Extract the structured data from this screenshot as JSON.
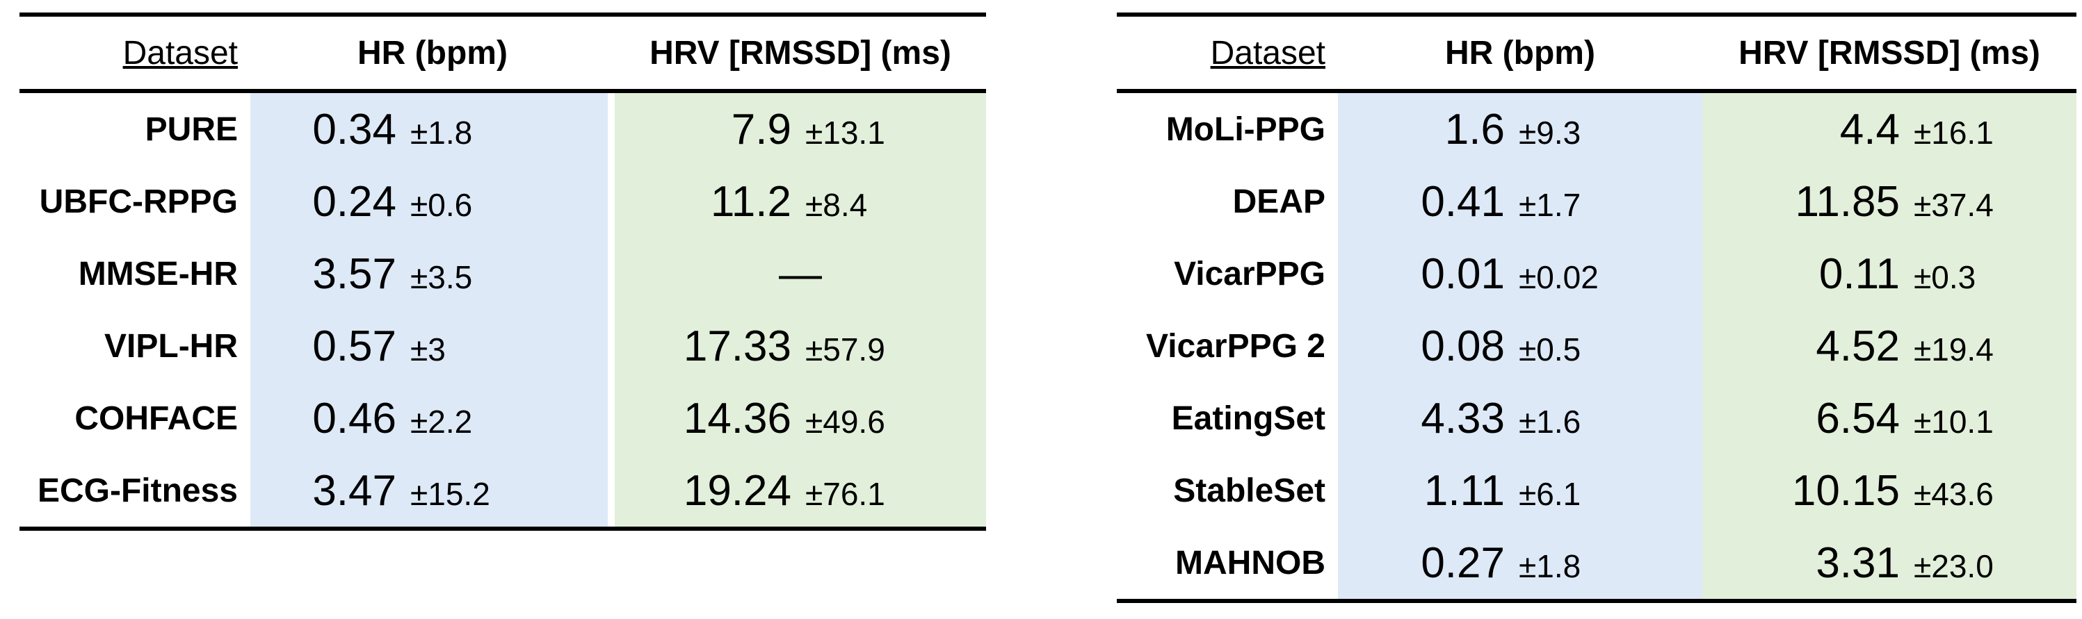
{
  "left_table": {
    "headers": {
      "dataset": "Dataset",
      "hr": "HR (bpm)",
      "hrv": "HRV [RMSSD] (ms)"
    },
    "rows": [
      {
        "dataset": "PURE",
        "hr": "0.34",
        "hr_sd": "±1.8",
        "hrv": "7.9",
        "hrv_sd": "±13.1"
      },
      {
        "dataset": "UBFC-RPPG",
        "hr": "0.24",
        "hr_sd": "±0.6",
        "hrv": "11.2",
        "hrv_sd": "±8.4"
      },
      {
        "dataset": "MMSE-HR",
        "hr": "3.57",
        "hr_sd": "±3.5",
        "hrv": "—",
        "hrv_sd": ""
      },
      {
        "dataset": "VIPL-HR",
        "hr": "0.57",
        "hr_sd": "±3",
        "hrv": "17.33",
        "hrv_sd": "±57.9"
      },
      {
        "dataset": "COHFACE",
        "hr": "0.46",
        "hr_sd": "±2.2",
        "hrv": "14.36",
        "hrv_sd": "±49.6"
      },
      {
        "dataset": "ECG-Fitness",
        "hr": "3.47",
        "hr_sd": "±15.2",
        "hrv": "19.24",
        "hrv_sd": "±76.1"
      }
    ]
  },
  "right_table": {
    "headers": {
      "dataset": "Dataset",
      "hr": "HR (bpm)",
      "hrv": "HRV [RMSSD] (ms)"
    },
    "rows": [
      {
        "dataset": "MoLi-PPG",
        "hr": "1.6",
        "hr_sd": "±9.3",
        "hrv": "4.4",
        "hrv_sd": "±16.1"
      },
      {
        "dataset": "DEAP",
        "hr": "0.41",
        "hr_sd": "±1.7",
        "hrv": "11.85",
        "hrv_sd": "±37.4"
      },
      {
        "dataset": "VicarPPG",
        "hr": "0.01",
        "hr_sd": "±0.02",
        "hrv": "0.11",
        "hrv_sd": "±0.3"
      },
      {
        "dataset": "VicarPPG 2",
        "hr": "0.08",
        "hr_sd": "±0.5",
        "hrv": "4.52",
        "hrv_sd": "±19.4"
      },
      {
        "dataset": "EatingSet",
        "hr": "4.33",
        "hr_sd": "±1.6",
        "hrv": "6.54",
        "hrv_sd": "±10.1"
      },
      {
        "dataset": "StableSet",
        "hr": "1.11",
        "hr_sd": "±6.1",
        "hrv": "10.15",
        "hrv_sd": "±43.6"
      },
      {
        "dataset": "MAHNOB",
        "hr": "0.27",
        "hr_sd": "±1.8",
        "hrv": "3.31",
        "hrv_sd": "±23.0"
      }
    ]
  },
  "colors": {
    "hr_bg": "#dde9f7",
    "hrv_bg": "#e2efda",
    "rule": "#000000"
  }
}
